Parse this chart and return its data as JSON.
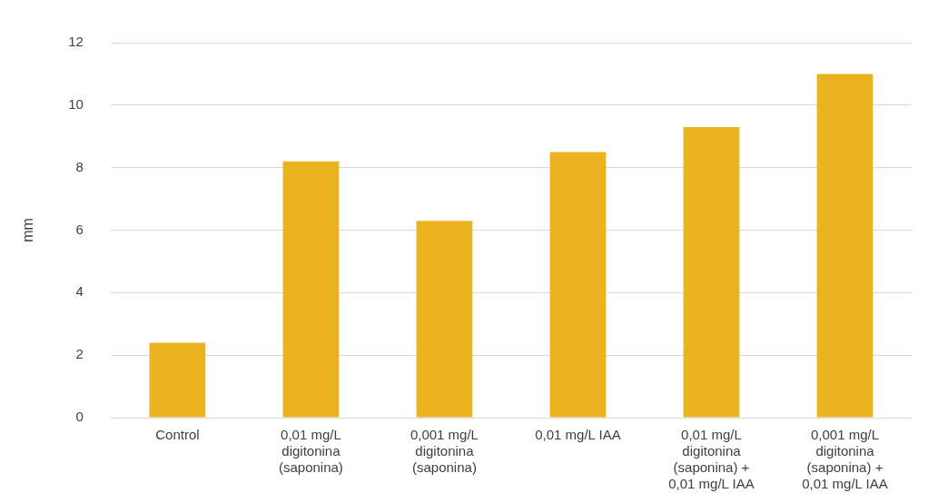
{
  "chart_data": {
    "type": "bar",
    "ylabel": "mm",
    "categories": [
      "Control",
      "0,01 mg/L digitonina (saponina)",
      "0,001 mg/L digitonina (saponina)",
      "0,01 mg/L IAA",
      "0,01 mg/L digitonina (saponina) + 0,01 mg/L IAA",
      "0,001 mg/L digitonina (saponina) + 0,01 mg/L IAA"
    ],
    "values": [
      2.4,
      8.2,
      6.3,
      8.5,
      9.3,
      11
    ],
    "color": "#ecb320",
    "ylim": [
      0,
      12
    ],
    "yticks": [
      0,
      2,
      4,
      6,
      8,
      10,
      12
    ],
    "grid": "y",
    "legend": false
  }
}
